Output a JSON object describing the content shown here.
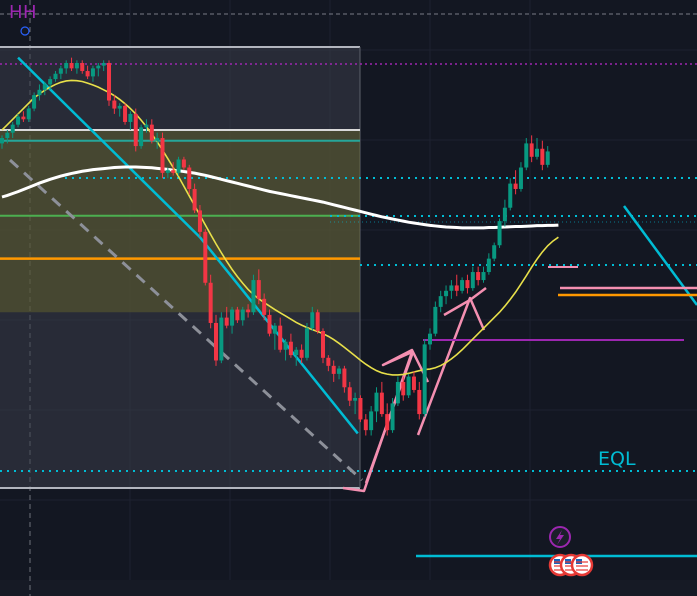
{
  "labels": {
    "hh": "HH",
    "eql": "EQL"
  },
  "colors": {
    "background": "#131722",
    "grid": "#1e2230",
    "bull": "#089981",
    "bear": "#f23645",
    "sma_white": "#ffffff",
    "ema_yellow": "#e8e04a",
    "cyan": "#00bcd4",
    "pink": "#f48fb1",
    "orange": "#ff9800",
    "purple": "#9c27b0",
    "green": "#4caf50",
    "teal": "#26a69a",
    "grey": "#b2b5be"
  },
  "chart_data": {
    "type": "candlestick",
    "price_levels": {
      "fib_top": 128,
      "zone_top": 100,
      "teal_line": 96,
      "green_line": 68,
      "orange_line": 52,
      "zone_bottom": 32
    },
    "candles": [
      {
        "o": 95,
        "h": 98,
        "l": 93,
        "c": 97
      },
      {
        "o": 97,
        "h": 100,
        "l": 95,
        "c": 99
      },
      {
        "o": 99,
        "h": 103,
        "l": 97,
        "c": 102
      },
      {
        "o": 102,
        "h": 106,
        "l": 101,
        "c": 105
      },
      {
        "o": 105,
        "h": 107,
        "l": 103,
        "c": 104
      },
      {
        "o": 104,
        "h": 109,
        "l": 103,
        "c": 108
      },
      {
        "o": 108,
        "h": 114,
        "l": 107,
        "c": 113
      },
      {
        "o": 113,
        "h": 117,
        "l": 111,
        "c": 115
      },
      {
        "o": 115,
        "h": 118,
        "l": 113,
        "c": 117
      },
      {
        "o": 117,
        "h": 120,
        "l": 115,
        "c": 119
      },
      {
        "o": 119,
        "h": 122,
        "l": 118,
        "c": 121
      },
      {
        "o": 121,
        "h": 124,
        "l": 119,
        "c": 123
      },
      {
        "o": 123,
        "h": 126,
        "l": 121,
        "c": 125
      },
      {
        "o": 125,
        "h": 127,
        "l": 122,
        "c": 123
      },
      {
        "o": 123,
        "h": 126,
        "l": 121,
        "c": 125
      },
      {
        "o": 125,
        "h": 126,
        "l": 121,
        "c": 122
      },
      {
        "o": 122,
        "h": 124,
        "l": 119,
        "c": 120
      },
      {
        "o": 120,
        "h": 124,
        "l": 118,
        "c": 123
      },
      {
        "o": 123,
        "h": 125,
        "l": 120,
        "c": 124
      },
      {
        "o": 124,
        "h": 126,
        "l": 122,
        "c": 125
      },
      {
        "o": 125,
        "h": 126,
        "l": 109,
        "c": 111
      },
      {
        "o": 111,
        "h": 113,
        "l": 106,
        "c": 108
      },
      {
        "o": 108,
        "h": 110,
        "l": 105,
        "c": 109
      },
      {
        "o": 109,
        "h": 110,
        "l": 102,
        "c": 103
      },
      {
        "o": 103,
        "h": 107,
        "l": 100,
        "c": 106
      },
      {
        "o": 106,
        "h": 108,
        "l": 92,
        "c": 94
      },
      {
        "o": 94,
        "h": 102,
        "l": 93,
        "c": 101
      },
      {
        "o": 101,
        "h": 104,
        "l": 99,
        "c": 102
      },
      {
        "o": 102,
        "h": 104,
        "l": 95,
        "c": 96
      },
      {
        "o": 96,
        "h": 99,
        "l": 93,
        "c": 97
      },
      {
        "o": 97,
        "h": 99,
        "l": 82,
        "c": 84
      },
      {
        "o": 84,
        "h": 86,
        "l": 82,
        "c": 85
      },
      {
        "o": 85,
        "h": 88,
        "l": 83,
        "c": 84
      },
      {
        "o": 84,
        "h": 90,
        "l": 83,
        "c": 89
      },
      {
        "o": 89,
        "h": 90,
        "l": 85,
        "c": 86
      },
      {
        "o": 86,
        "h": 87,
        "l": 76,
        "c": 78
      },
      {
        "o": 78,
        "h": 80,
        "l": 69,
        "c": 70
      },
      {
        "o": 70,
        "h": 72,
        "l": 60,
        "c": 62
      },
      {
        "o": 62,
        "h": 63,
        "l": 42,
        "c": 43
      },
      {
        "o": 43,
        "h": 46,
        "l": 26,
        "c": 28
      },
      {
        "o": 28,
        "h": 31,
        "l": 12,
        "c": 14
      },
      {
        "o": 14,
        "h": 32,
        "l": 13,
        "c": 30
      },
      {
        "o": 30,
        "h": 34,
        "l": 26,
        "c": 27
      },
      {
        "o": 27,
        "h": 34,
        "l": 24,
        "c": 33
      },
      {
        "o": 33,
        "h": 34,
        "l": 28,
        "c": 29
      },
      {
        "o": 29,
        "h": 34,
        "l": 27,
        "c": 33
      },
      {
        "o": 33,
        "h": 35,
        "l": 30,
        "c": 32
      },
      {
        "o": 32,
        "h": 46,
        "l": 31,
        "c": 44
      },
      {
        "o": 44,
        "h": 48,
        "l": 35,
        "c": 37
      },
      {
        "o": 37,
        "h": 39,
        "l": 29,
        "c": 31
      },
      {
        "o": 31,
        "h": 33,
        "l": 23,
        "c": 24
      },
      {
        "o": 24,
        "h": 28,
        "l": 18,
        "c": 27
      },
      {
        "o": 27,
        "h": 30,
        "l": 17,
        "c": 18
      },
      {
        "o": 18,
        "h": 22,
        "l": 14,
        "c": 21
      },
      {
        "o": 21,
        "h": 24,
        "l": 15,
        "c": 16
      },
      {
        "o": 16,
        "h": 19,
        "l": 12,
        "c": 18
      },
      {
        "o": 18,
        "h": 20,
        "l": 13,
        "c": 15
      },
      {
        "o": 15,
        "h": 28,
        "l": 14,
        "c": 26
      },
      {
        "o": 26,
        "h": 34,
        "l": 25,
        "c": 32
      },
      {
        "o": 32,
        "h": 33,
        "l": 24,
        "c": 25
      },
      {
        "o": 25,
        "h": 26,
        "l": 13,
        "c": 15
      },
      {
        "o": 15,
        "h": 16,
        "l": 10,
        "c": 12
      },
      {
        "o": 12,
        "h": 14,
        "l": 6,
        "c": 9
      },
      {
        "o": 9,
        "h": 12,
        "l": 7,
        "c": 11
      },
      {
        "o": 11,
        "h": 12,
        "l": 2,
        "c": 4
      },
      {
        "o": 4,
        "h": 6,
        "l": -3,
        "c": -1
      },
      {
        "o": -1,
        "h": 2,
        "l": -6,
        "c": 0
      },
      {
        "o": 0,
        "h": 1,
        "l": -9,
        "c": -8
      },
      {
        "o": -8,
        "h": -6,
        "l": -14,
        "c": -12
      },
      {
        "o": -12,
        "h": -3,
        "l": -14,
        "c": -5
      },
      {
        "o": -5,
        "h": 4,
        "l": -9,
        "c": 2
      },
      {
        "o": 2,
        "h": 6,
        "l": -7,
        "c": -6
      },
      {
        "o": -6,
        "h": -2,
        "l": -14,
        "c": -12
      },
      {
        "o": -12,
        "h": 0,
        "l": -13,
        "c": -2
      },
      {
        "o": -2,
        "h": 8,
        "l": -3,
        "c": 6
      },
      {
        "o": 6,
        "h": 8,
        "l": -1,
        "c": 1
      },
      {
        "o": 1,
        "h": 9,
        "l": 0,
        "c": 8
      },
      {
        "o": 8,
        "h": 10,
        "l": 2,
        "c": 3
      },
      {
        "o": 3,
        "h": 6,
        "l": -8,
        "c": -6
      },
      {
        "o": -6,
        "h": 22,
        "l": -7,
        "c": 20
      },
      {
        "o": 20,
        "h": 26,
        "l": 18,
        "c": 24
      },
      {
        "o": 24,
        "h": 36,
        "l": 23,
        "c": 34
      },
      {
        "o": 34,
        "h": 40,
        "l": 32,
        "c": 38
      },
      {
        "o": 38,
        "h": 42,
        "l": 35,
        "c": 40
      },
      {
        "o": 40,
        "h": 44,
        "l": 37,
        "c": 42
      },
      {
        "o": 42,
        "h": 46,
        "l": 38,
        "c": 40
      },
      {
        "o": 40,
        "h": 45,
        "l": 39,
        "c": 44
      },
      {
        "o": 44,
        "h": 46,
        "l": 39,
        "c": 41
      },
      {
        "o": 41,
        "h": 49,
        "l": 40,
        "c": 47
      },
      {
        "o": 47,
        "h": 49,
        "l": 42,
        "c": 44
      },
      {
        "o": 44,
        "h": 49,
        "l": 43,
        "c": 47
      },
      {
        "o": 47,
        "h": 54,
        "l": 46,
        "c": 52
      },
      {
        "o": 52,
        "h": 58,
        "l": 51,
        "c": 57
      },
      {
        "o": 57,
        "h": 67,
        "l": 56,
        "c": 66
      },
      {
        "o": 66,
        "h": 74,
        "l": 64,
        "c": 71
      },
      {
        "o": 71,
        "h": 82,
        "l": 70,
        "c": 80
      },
      {
        "o": 80,
        "h": 85,
        "l": 76,
        "c": 78
      },
      {
        "o": 78,
        "h": 88,
        "l": 77,
        "c": 86
      },
      {
        "o": 86,
        "h": 97,
        "l": 85,
        "c": 95
      },
      {
        "o": 95,
        "h": 98,
        "l": 88,
        "c": 90
      },
      {
        "o": 90,
        "h": 97,
        "l": 89,
        "c": 93
      },
      {
        "o": 93,
        "h": 96,
        "l": 85,
        "c": 87
      },
      {
        "o": 87,
        "h": 94,
        "l": 86,
        "c": 92
      }
    ],
    "sma": [
      75,
      75.6,
      76.3,
      77,
      77.8,
      78.6,
      79.4,
      80.2,
      80.9,
      81.6,
      82.2,
      82.8,
      83.3,
      83.8,
      84.2,
      84.6,
      84.9,
      85.2,
      85.4,
      85.6,
      85.8,
      86,
      86.1,
      86.2,
      86.2,
      86.2,
      86.1,
      86,
      85.9,
      85.7,
      85.5,
      85.3,
      85,
      84.8,
      84.5,
      84.2,
      83.9,
      83.5,
      83.1,
      82.6,
      82.1,
      81.6,
      81.1,
      80.6,
      80.1,
      79.6,
      79.1,
      78.6,
      78.1,
      77.6,
      77.1,
      76.7,
      76.3,
      75.9,
      75.5,
      75.1,
      74.7,
      74.3,
      73.9,
      73.5,
      73.1,
      72.6,
      72.1,
      71.6,
      71.1,
      70.6,
      70.1,
      69.6,
      69.1,
      68.6,
      68.1,
      67.6,
      67.2,
      66.8,
      66.4,
      66,
      65.6,
      65.3,
      65,
      64.7,
      64.4,
      64.2,
      64,
      63.8,
      63.7,
      63.6,
      63.5,
      63.5,
      63.5,
      63.5,
      63.5,
      63.6,
      63.6,
      63.7,
      63.8,
      63.9,
      64,
      64,
      64.1,
      64.2,
      64.3,
      64.3,
      64.4,
      64.4,
      64.5
    ],
    "ema": [
      100,
      102,
      104,
      106,
      108,
      110,
      112,
      113.5,
      114.8,
      116,
      117,
      117.8,
      118.3,
      118.5,
      118.4,
      118.1,
      117.5,
      116.8,
      116,
      115,
      114,
      112.8,
      111.4,
      109.8,
      108,
      106,
      103.7,
      101.2,
      98.5,
      95.6,
      92.5,
      89.3,
      86,
      82.6,
      79,
      75.4,
      71.8,
      68.2,
      64.6,
      61,
      57.5,
      54.2,
      51,
      48,
      45.3,
      42.8,
      40.5,
      38.6,
      37,
      35.6,
      34.3,
      33,
      31.8,
      30.6,
      29.4,
      28.2,
      27.2,
      26.3,
      25.5,
      24.8,
      24,
      23,
      21.8,
      20.4,
      18.9,
      17.3,
      15.7,
      14.1,
      12.6,
      11.3,
      10.2,
      9.4,
      8.9,
      8.6,
      8.6,
      8.8,
      9.2,
      9.7,
      10.2,
      10.6,
      10.8,
      11.3,
      12.1,
      13.2,
      14.6,
      16.2,
      18,
      20,
      22,
      24,
      26,
      28,
      30,
      32,
      34.3,
      36.8,
      39.5,
      42.5,
      45.6,
      48.8,
      51.8,
      54.5,
      56.8,
      58.6,
      60
    ],
    "structure_zigzag": [
      {
        "i": 3,
        "v": 127
      },
      {
        "i": 37,
        "v": 60
      },
      {
        "i": 65,
        "v": -8
      },
      {
        "i": 76,
        "v": 26
      },
      {
        "i": 80,
        "v": 17
      },
      {
        "i": 88,
        "v": 52
      },
      {
        "i": 93,
        "v": 37
      }
    ],
    "eql_level": -5
  }
}
